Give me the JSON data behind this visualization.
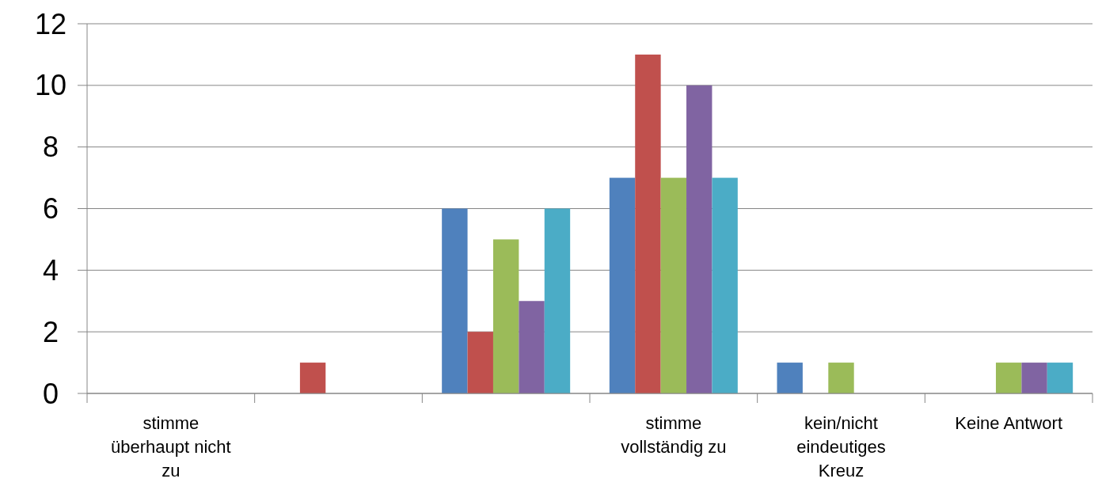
{
  "chart_data": {
    "type": "bar",
    "categories": [
      "stimme überhaupt nicht zu",
      null,
      null,
      "stimme vollständig zu",
      "kein/nicht eindeutiges Kreuz",
      "Keine Antwort"
    ],
    "series": [
      {
        "color": "#4f81bd",
        "values": [
          0,
          0,
          6,
          7,
          1,
          0
        ]
      },
      {
        "color": "#c0504d",
        "values": [
          0,
          1,
          2,
          11,
          0,
          0
        ]
      },
      {
        "color": "#9bbb59",
        "values": [
          0,
          0,
          5,
          7,
          1,
          1
        ]
      },
      {
        "color": "#8064a2",
        "values": [
          0,
          0,
          3,
          10,
          0,
          1
        ]
      },
      {
        "color": "#4bacc6",
        "values": [
          0,
          0,
          6,
          7,
          0,
          1
        ]
      }
    ],
    "ylim": [
      0,
      12
    ],
    "yticks": [
      0,
      2,
      4,
      6,
      8,
      10,
      12
    ],
    "grid": "y"
  }
}
